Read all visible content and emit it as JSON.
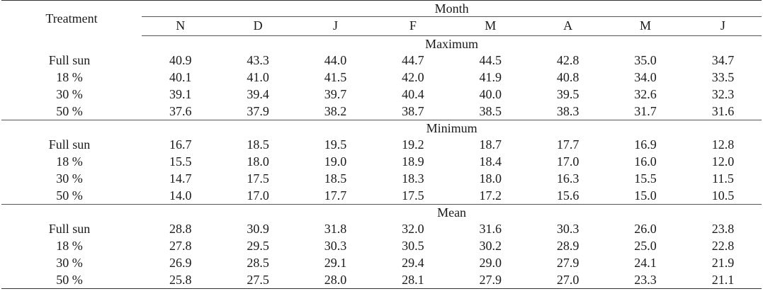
{
  "header": {
    "treatment_label": "Treatment",
    "month_label": "Month",
    "months": [
      "N",
      "D",
      "J",
      "F",
      "M",
      "A",
      "M",
      "J"
    ]
  },
  "groups": [
    {
      "title": "Maximum",
      "rows": [
        {
          "name": "Full sun",
          "values": [
            "40.9",
            "43.3",
            "44.0",
            "44.7",
            "44.5",
            "42.8",
            "35.0",
            "34.7"
          ]
        },
        {
          "name": "18 %",
          "values": [
            "40.1",
            "41.0",
            "41.5",
            "42.0",
            "41.9",
            "40.8",
            "34.0",
            "33.5"
          ]
        },
        {
          "name": "30 %",
          "values": [
            "39.1",
            "39.4",
            "39.7",
            "40.4",
            "40.0",
            "39.5",
            "32.6",
            "32.3"
          ]
        },
        {
          "name": "50 %",
          "values": [
            "37.6",
            "37.9",
            "38.2",
            "38.7",
            "38.5",
            "38.3",
            "31.7",
            "31.6"
          ]
        }
      ]
    },
    {
      "title": "Minimum",
      "rows": [
        {
          "name": "Full sun",
          "values": [
            "16.7",
            "18.5",
            "19.5",
            "19.2",
            "18.7",
            "17.7",
            "16.9",
            "12.8"
          ]
        },
        {
          "name": "18 %",
          "values": [
            "15.5",
            "18.0",
            "19.0",
            "18.9",
            "18.4",
            "17.0",
            "16.0",
            "12.0"
          ]
        },
        {
          "name": "30 %",
          "values": [
            "14.7",
            "17.5",
            "18.5",
            "18.3",
            "18.0",
            "16.3",
            "15.5",
            "11.5"
          ]
        },
        {
          "name": "50 %",
          "values": [
            "14.0",
            "17.0",
            "17.7",
            "17.5",
            "17.2",
            "15.6",
            "15.0",
            "10.5"
          ]
        }
      ]
    },
    {
      "title": "Mean",
      "rows": [
        {
          "name": "Full sun",
          "values": [
            "28.8",
            "30.9",
            "31.8",
            "32.0",
            "31.6",
            "30.3",
            "26.0",
            "23.8"
          ]
        },
        {
          "name": "18 %",
          "values": [
            "27.8",
            "29.5",
            "30.3",
            "30.5",
            "30.2",
            "28.9",
            "25.0",
            "22.8"
          ]
        },
        {
          "name": "30 %",
          "values": [
            "26.9",
            "28.5",
            "29.1",
            "29.4",
            "29.0",
            "27.9",
            "24.1",
            "21.9"
          ]
        },
        {
          "name": "50 %",
          "values": [
            "25.8",
            "27.5",
            "28.0",
            "28.1",
            "27.9",
            "27.0",
            "23.3",
            "21.1"
          ]
        }
      ]
    }
  ]
}
